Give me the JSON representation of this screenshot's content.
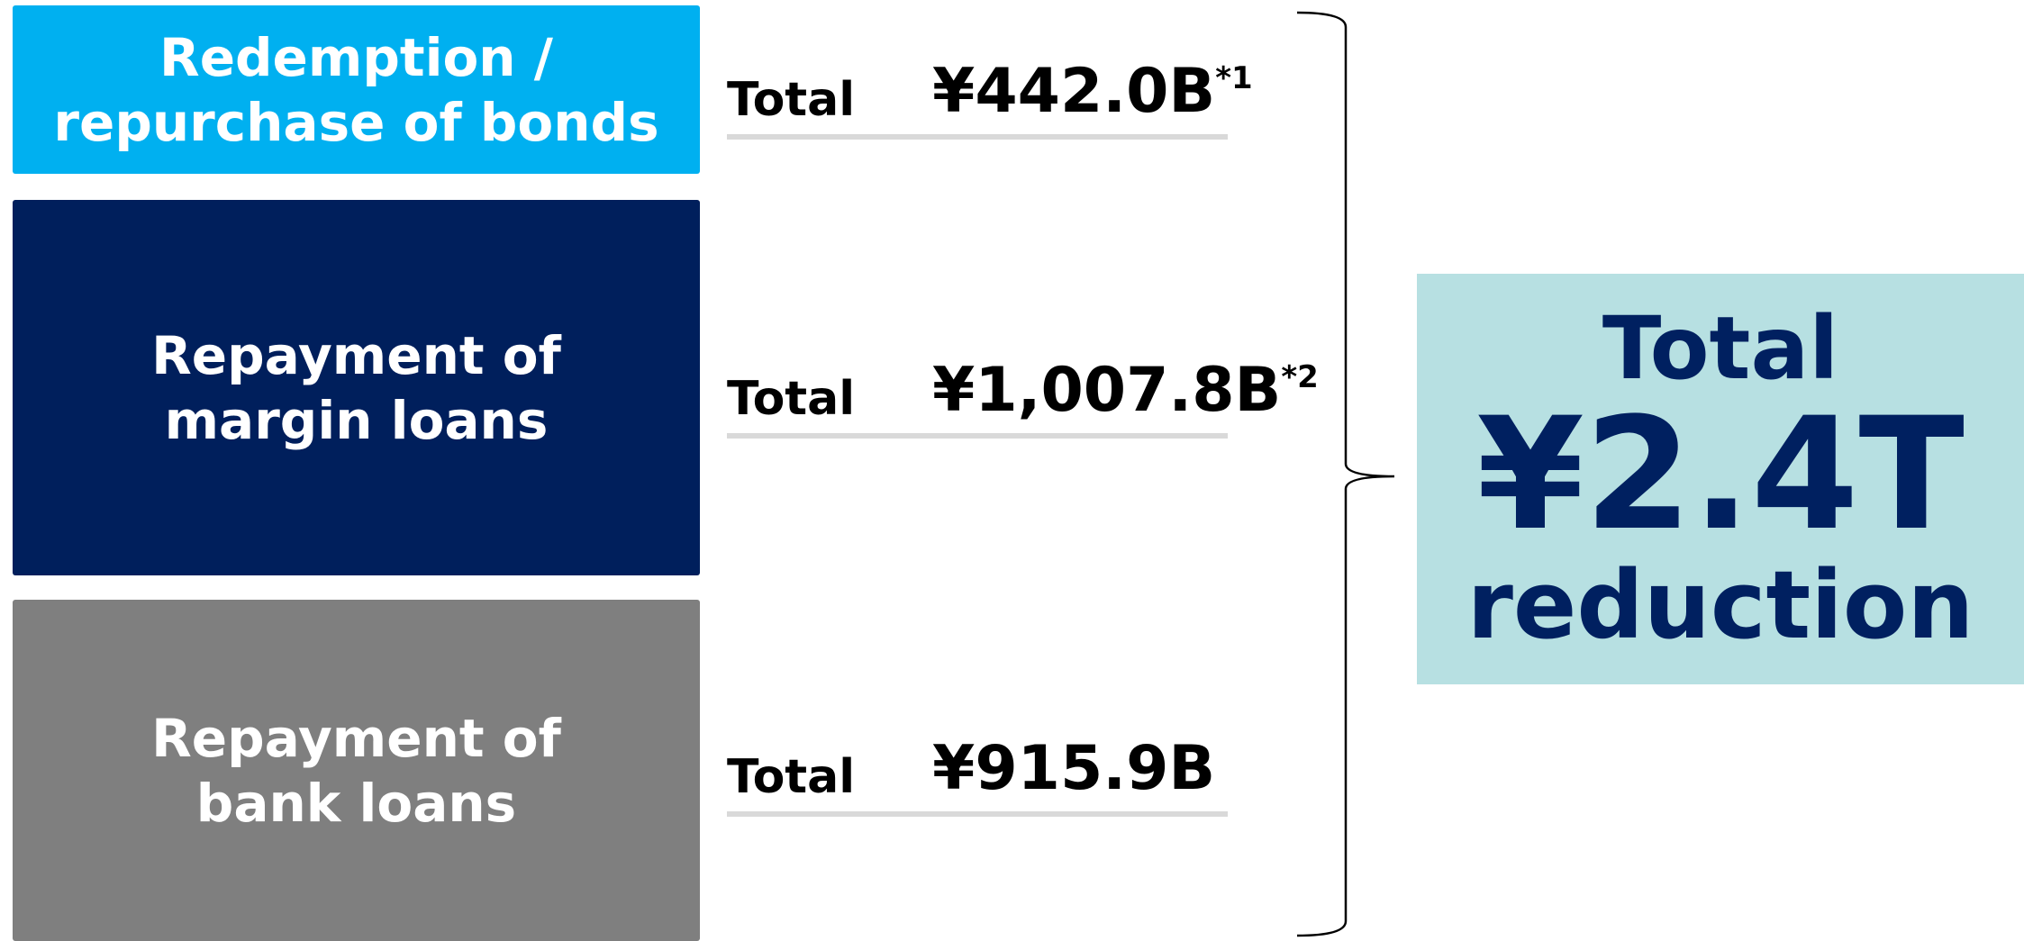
{
  "items": [
    {
      "lines": [
        "Redemption /",
        "repurchase of bonds"
      ],
      "total": "Total",
      "amount": "¥442.0B",
      "note": "*1"
    },
    {
      "lines": [
        "Repayment of",
        "margin loans"
      ],
      "total": "Total",
      "amount": "¥1,007.8B",
      "note": "*2"
    },
    {
      "lines": [
        "Repayment of",
        "bank loans"
      ],
      "total": "Total",
      "amount": "¥915.9B"
    }
  ],
  "summary": {
    "top": "Total",
    "amount": "¥2.4T",
    "bottom": "reduction"
  }
}
